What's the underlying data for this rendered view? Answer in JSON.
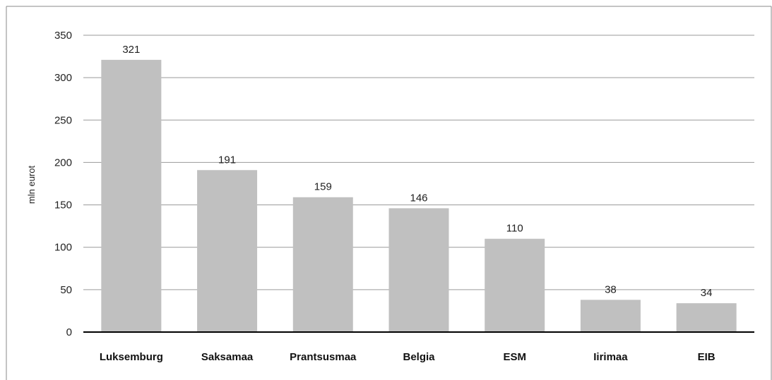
{
  "chart_data": {
    "type": "bar",
    "title": "",
    "xlabel": "",
    "ylabel": "mln eurot",
    "categories": [
      "Luksemburg",
      "Saksamaa",
      "Prantsusmaa",
      "Belgia",
      "ESM",
      "Iirimaa",
      "EIB"
    ],
    "values": [
      321,
      191,
      159,
      146,
      110,
      38,
      34
    ],
    "data_labels": [
      "321",
      "191",
      "159",
      "146",
      "110",
      "38",
      "34"
    ],
    "ylim": [
      0,
      350
    ],
    "yticks": [
      0,
      50,
      100,
      150,
      200,
      250,
      300,
      350
    ],
    "grid": true,
    "legend": "none",
    "colors": {
      "bar": "#c0c0c0",
      "grid": "#9a9a9a",
      "axis": "#000000",
      "frame": "#8a8a8a"
    }
  }
}
